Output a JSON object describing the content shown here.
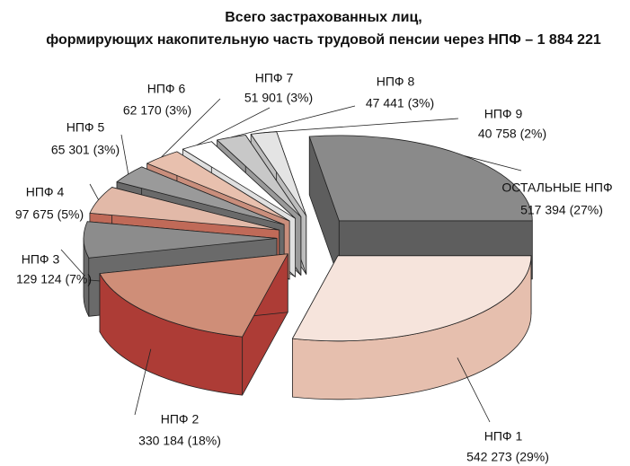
{
  "chart_data": {
    "type": "pie3d",
    "title": "Всего застрахованных лиц,",
    "subtitle": "формирующих накопительную часть трудовой пенсии через НПФ – 1 884 221",
    "categories": [
      "НПФ  1",
      "НПФ  2",
      "НПФ  3",
      "НПФ  4",
      "НПФ  5",
      "НПФ  6",
      "НПФ  7",
      "НПФ  8",
      "НПФ  9",
      "ОСТАЛЬНЫЕ НПФ"
    ],
    "values": [
      542273,
      330184,
      129124,
      97675,
      65301,
      62170,
      51901,
      47441,
      40758,
      517394
    ],
    "value_labels": [
      "542 273 (29%)",
      "330 184 (18%)",
      "129 124 (7%)",
      "97 675 (5%)",
      "65 301 (3%)",
      "62 170 (3%)",
      "51 901 (3%)",
      "47 441 (3%)",
      "40 758 (2%)",
      "517 394 (27%)"
    ],
    "colors": [
      "#f6e4dc",
      "#cf8e78",
      "#8c8c8c",
      "#e2b9a8",
      "#9a9a9a",
      "#e8c0ae",
      "#ffffff",
      "#c8c8c8",
      "#e4e4e4",
      "#8a8a8a"
    ],
    "side_colors": [
      "#e6bfae",
      "#ad3c36",
      "#6a6a6a",
      "#c06a58",
      "#6a6a6a",
      "#c98e7c",
      "#e0e0e0",
      "#9a9a9a",
      "#bdbdbd",
      "#5e5e5e"
    ]
  }
}
